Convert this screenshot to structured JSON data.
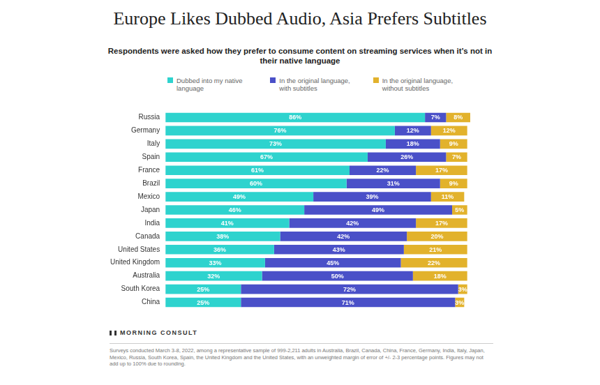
{
  "chart_data": {
    "type": "bar",
    "title": "Europe Likes Dubbed Audio, Asia Prefers Subtitles",
    "subtitle": "Respondents were asked how they prefer to consume content on streaming services when it’s not in their native language",
    "categories": [
      "Russia",
      "Germany",
      "Italy",
      "Spain",
      "France",
      "Brazil",
      "Mexico",
      "Japan",
      "India",
      "Canada",
      "United States",
      "United Kingdom",
      "Australia",
      "South Korea",
      "China"
    ],
    "series": [
      {
        "name": "Dubbed into my native language",
        "color": "#2ed3ce",
        "values": [
          86,
          76,
          73,
          67,
          61,
          60,
          49,
          46,
          41,
          38,
          36,
          33,
          32,
          25,
          25
        ],
        "value_labels": [
          "86%",
          "76%",
          "73%",
          "67%",
          "61%",
          "60%",
          "49%",
          "46%",
          "41%",
          "38%",
          "36%",
          "33%",
          "32%",
          "25%",
          "25%"
        ]
      },
      {
        "name": "In the original language, with subtitles",
        "color": "#4a50c8",
        "values": [
          7,
          12,
          18,
          26,
          22,
          31,
          39,
          49,
          42,
          42,
          43,
          45,
          50,
          72,
          71
        ],
        "value_labels": [
          "7%",
          "12%",
          "18%",
          "26%",
          "22%",
          "31%",
          "39%",
          "49%",
          "42%",
          "42%",
          "43%",
          "45%",
          "50%",
          "72%",
          "71%"
        ]
      },
      {
        "name": "In the original language, without subtitles",
        "color": "#e2b22c",
        "values": [
          8,
          12,
          9,
          7,
          17,
          9,
          11,
          5,
          17,
          20,
          21,
          22,
          18,
          3,
          3
        ],
        "value_labels": [
          "8%",
          "12%",
          "9%",
          "7%",
          "17%",
          "9%",
          "11%",
          "5%",
          "17%",
          "20%",
          "21%",
          "22%",
          "18%",
          "3%",
          "3%"
        ]
      }
    ],
    "orientation": "horizontal",
    "stacked": true,
    "data_labels": true,
    "grid": false,
    "legend": "top",
    "tick_labels": "y",
    "logo": "MORNING CONSULT",
    "note": "Surveys conducted March 3-8, 2022, among a representative sample of 999-2,211 adults in Australia, Brazil, Canada, China, France, Germany, India, Italy, Japan, Mexico, Russia, South Korea, Spain, the United Kingdom and the United States, with an unweighted margin of error of +/- 2-3 percentage points. Figures may not add up to 100% due to rounding."
  }
}
